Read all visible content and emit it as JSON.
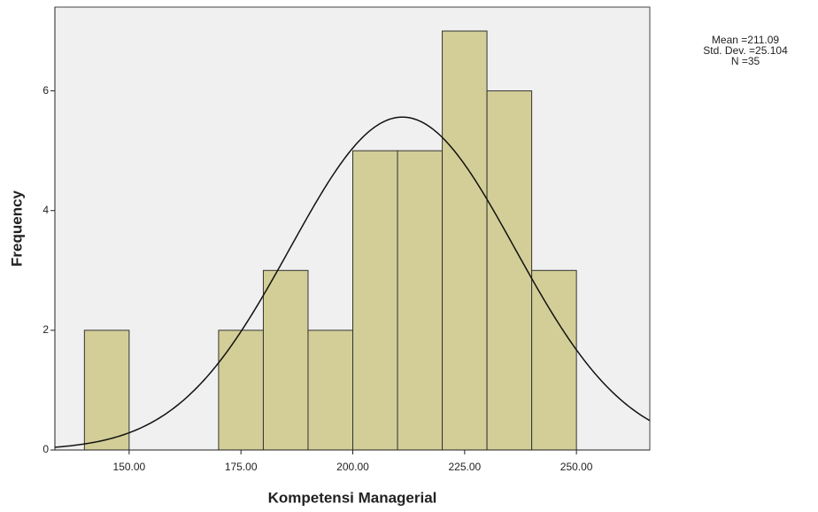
{
  "chart_data": {
    "type": "histogram",
    "x_label": "Kompetensi Managerial",
    "y_label": "Frequency",
    "bins": [
      140,
      150,
      160,
      170,
      180,
      190,
      200,
      210,
      220,
      230,
      240,
      250
    ],
    "counts": [
      2,
      0,
      0,
      2,
      3,
      2,
      5,
      5,
      7,
      6,
      3
    ],
    "color": "#d3ce97",
    "plot_background": "#f0f0f0",
    "xlim": [
      133.4,
      266.4
    ],
    "xticks": [
      {
        "value": 150,
        "label": "150.00"
      },
      {
        "value": 175,
        "label": "175.00"
      },
      {
        "value": 200,
        "label": "200.00"
      },
      {
        "value": 225,
        "label": "225.00"
      },
      {
        "value": 250,
        "label": "250.00"
      }
    ],
    "ylim": [
      0,
      7.4
    ],
    "yticks": [
      0,
      2,
      4,
      6
    ],
    "annotations": {
      "mean": {
        "value": 211.09,
        "label": "Mean =211.09"
      },
      "std": {
        "value": 25.104,
        "label": "Std. Dev. =25.104"
      },
      "n": {
        "value": 35,
        "label": "N =35"
      }
    }
  }
}
